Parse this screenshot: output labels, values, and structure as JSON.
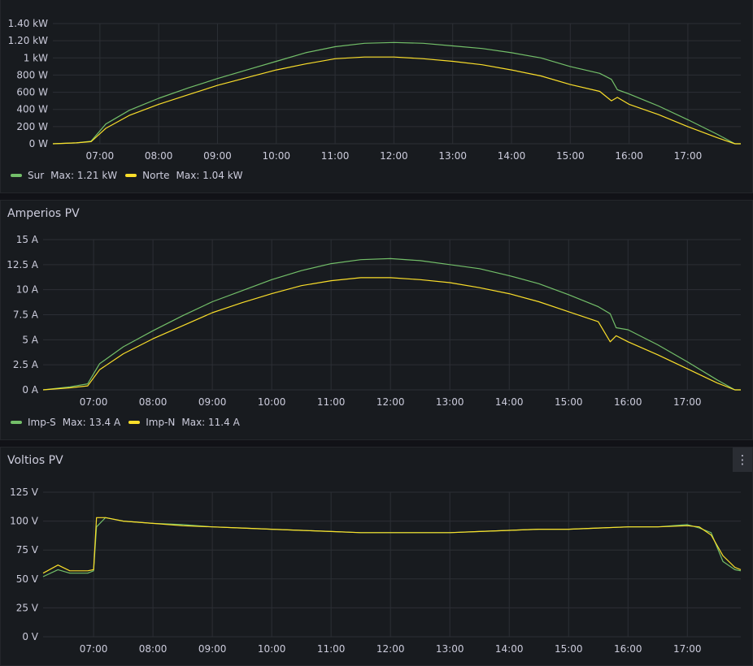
{
  "colors": {
    "green": "#73bf69",
    "yellow": "#fade2a",
    "grid": "#2c2f35",
    "background": "#181b1f"
  },
  "panels": [
    {
      "title": "",
      "legend": [
        {
          "name": "Sur",
          "max": "Max: 1.21 kW",
          "color": "#73bf69"
        },
        {
          "name": "Norte",
          "max": "Max: 1.04 kW",
          "color": "#fade2a"
        }
      ]
    },
    {
      "title": "Amperios PV",
      "legend": [
        {
          "name": "Imp-S",
          "max": "Max: 13.4 A",
          "color": "#73bf69"
        },
        {
          "name": "Imp-N",
          "max": "Max: 11.4 A",
          "color": "#fade2a"
        }
      ]
    },
    {
      "title": "Voltios PV",
      "legend": []
    }
  ],
  "chart_data": [
    {
      "type": "line",
      "title": "",
      "xlabel": "",
      "ylabel": "",
      "x_ticks": [
        "07:00",
        "08:00",
        "09:00",
        "10:00",
        "11:00",
        "12:00",
        "13:00",
        "14:00",
        "15:00",
        "16:00",
        "17:00"
      ],
      "y_ticks": [
        "0 W",
        "200 W",
        "400 W",
        "600 W",
        "800 W",
        "1 kW",
        "1.20 kW",
        "1.40 kW"
      ],
      "xlim": [
        6.2,
        17.9
      ],
      "ylim": [
        0,
        1400
      ],
      "grid": true,
      "legend_placement": "bottom-left",
      "series": [
        {
          "name": "Sur",
          "color": "#73bf69",
          "x": [
            6.2,
            6.6,
            6.85,
            7.1,
            7.5,
            8.0,
            8.5,
            9.0,
            9.5,
            10.0,
            10.5,
            11.0,
            11.5,
            12.0,
            12.5,
            13.0,
            13.5,
            14.0,
            14.5,
            15.0,
            15.5,
            15.7,
            15.8,
            16.0,
            16.5,
            17.0,
            17.5,
            17.8,
            17.9
          ],
          "y": [
            0,
            10,
            30,
            230,
            390,
            530,
            650,
            760,
            860,
            960,
            1060,
            1130,
            1170,
            1180,
            1170,
            1140,
            1110,
            1060,
            1000,
            900,
            820,
            750,
            630,
            580,
            440,
            280,
            110,
            0,
            0
          ]
        },
        {
          "name": "Norte",
          "color": "#fade2a",
          "x": [
            6.2,
            6.6,
            6.85,
            7.1,
            7.5,
            8.0,
            8.5,
            9.0,
            9.5,
            10.0,
            10.5,
            11.0,
            11.5,
            12.0,
            12.5,
            13.0,
            13.5,
            14.0,
            14.5,
            15.0,
            15.5,
            15.7,
            15.8,
            16.0,
            16.5,
            17.0,
            17.5,
            17.8,
            17.9
          ],
          "y": [
            0,
            10,
            25,
            180,
            330,
            460,
            570,
            680,
            770,
            860,
            930,
            990,
            1010,
            1010,
            990,
            960,
            920,
            860,
            790,
            690,
            610,
            500,
            540,
            460,
            340,
            200,
            70,
            0,
            0
          ]
        }
      ]
    },
    {
      "type": "line",
      "title": "Amperios PV",
      "xlabel": "",
      "ylabel": "",
      "x_ticks": [
        "07:00",
        "08:00",
        "09:00",
        "10:00",
        "11:00",
        "12:00",
        "13:00",
        "14:00",
        "15:00",
        "16:00",
        "17:00"
      ],
      "y_ticks": [
        "0 A",
        "2.5 A",
        "5 A",
        "7.5 A",
        "10 A",
        "12.5 A",
        "15 A"
      ],
      "xlim": [
        6.15,
        17.9
      ],
      "ylim": [
        0,
        15
      ],
      "grid": true,
      "legend_placement": "bottom-left",
      "series": [
        {
          "name": "Imp-S",
          "color": "#73bf69",
          "x": [
            6.15,
            6.6,
            6.9,
            7.1,
            7.5,
            8.0,
            8.5,
            9.0,
            9.5,
            10.0,
            10.5,
            11.0,
            11.5,
            12.0,
            12.5,
            13.0,
            13.5,
            14.0,
            14.5,
            15.0,
            15.5,
            15.7,
            15.8,
            16.0,
            16.5,
            17.0,
            17.5,
            17.8,
            17.9
          ],
          "y": [
            0,
            0.3,
            0.6,
            2.6,
            4.3,
            5.9,
            7.4,
            8.8,
            9.9,
            11.0,
            11.9,
            12.6,
            13.0,
            13.1,
            12.9,
            12.5,
            12.1,
            11.4,
            10.6,
            9.5,
            8.3,
            7.6,
            6.2,
            6.0,
            4.5,
            2.8,
            1.0,
            0,
            0
          ]
        },
        {
          "name": "Imp-N",
          "color": "#fade2a",
          "x": [
            6.15,
            6.6,
            6.9,
            7.1,
            7.5,
            8.0,
            8.5,
            9.0,
            9.5,
            10.0,
            10.5,
            11.0,
            11.5,
            12.0,
            12.5,
            13.0,
            13.5,
            14.0,
            14.5,
            15.0,
            15.5,
            15.7,
            15.8,
            16.0,
            16.5,
            17.0,
            17.5,
            17.8,
            17.9
          ],
          "y": [
            0,
            0.2,
            0.4,
            2.0,
            3.6,
            5.1,
            6.4,
            7.7,
            8.7,
            9.6,
            10.4,
            10.9,
            11.2,
            11.2,
            11.0,
            10.7,
            10.2,
            9.6,
            8.8,
            7.8,
            6.8,
            4.8,
            5.4,
            4.8,
            3.5,
            2.1,
            0.7,
            0,
            0
          ]
        }
      ]
    },
    {
      "type": "line",
      "title": "Voltios PV",
      "xlabel": "",
      "ylabel": "",
      "x_ticks": [
        "07:00",
        "08:00",
        "09:00",
        "10:00",
        "11:00",
        "12:00",
        "13:00",
        "14:00",
        "15:00",
        "16:00",
        "17:00"
      ],
      "y_ticks": [
        "0 V",
        "25 V",
        "50 V",
        "75 V",
        "100 V",
        "125 V"
      ],
      "xlim": [
        6.15,
        17.9
      ],
      "ylim": [
        0,
        125
      ],
      "grid": true,
      "series": [
        {
          "name": "",
          "color": "#73bf69",
          "x": [
            6.15,
            6.4,
            6.6,
            6.9,
            7.0,
            7.05,
            7.2,
            7.5,
            8.0,
            8.5,
            9.0,
            9.5,
            10.0,
            10.5,
            11.0,
            11.5,
            12.0,
            12.5,
            13.0,
            13.5,
            14.0,
            14.5,
            15.0,
            15.5,
            16.0,
            16.5,
            17.0,
            17.2,
            17.4,
            17.6,
            17.8,
            17.9
          ],
          "y": [
            52,
            58,
            55,
            55,
            57,
            95,
            103,
            100,
            98,
            97,
            95,
            94,
            93,
            92,
            91,
            90,
            90,
            90,
            90,
            91,
            92,
            93,
            93,
            94,
            95,
            95,
            97,
            94,
            90,
            65,
            58,
            57
          ]
        },
        {
          "name": "",
          "color": "#fade2a",
          "x": [
            6.15,
            6.4,
            6.6,
            6.9,
            7.0,
            7.05,
            7.2,
            7.5,
            8.0,
            8.5,
            9.0,
            9.5,
            10.0,
            10.5,
            11.0,
            11.5,
            12.0,
            12.5,
            13.0,
            13.5,
            14.0,
            14.5,
            15.0,
            15.5,
            16.0,
            16.5,
            17.0,
            17.2,
            17.4,
            17.6,
            17.8,
            17.9
          ],
          "y": [
            55,
            62,
            57,
            57,
            58,
            103,
            103,
            100,
            98,
            96,
            95,
            94,
            93,
            92,
            91,
            90,
            90,
            90,
            90,
            91,
            92,
            93,
            93,
            94,
            95,
            95,
            96,
            95,
            88,
            70,
            60,
            58
          ]
        }
      ]
    }
  ]
}
